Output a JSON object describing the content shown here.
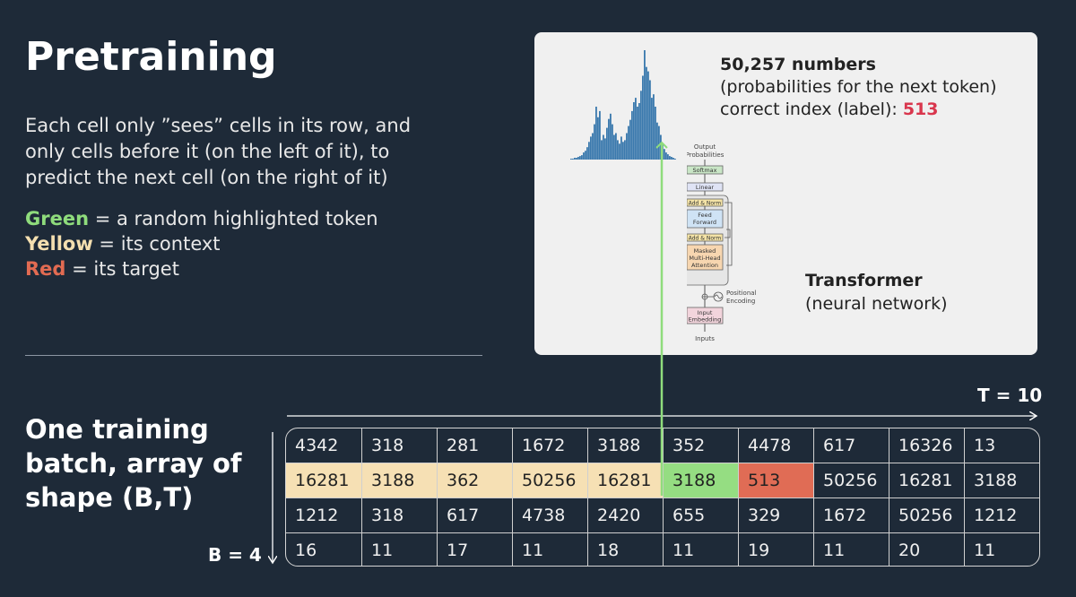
{
  "title": "Pretraining",
  "description": "Each cell only ”sees” cells in its row, and only cells before it (on the left of it), to predict the next cell (on the right of it)",
  "legend": [
    {
      "key": "Green",
      "text": " = a random highlighted token",
      "color": "#8fdc7c"
    },
    {
      "key": "Yellow",
      "text": " = its context",
      "color": "#f4dfb0"
    },
    {
      "key": "Red",
      "text": " = its target",
      "color": "#e26b52"
    }
  ],
  "output_panel": {
    "count": "50,257 numbers",
    "subtitle": "(probabilities for the next token)",
    "label_prefix": "correct index (label): ",
    "label_value": "513",
    "model_name": "Transformer",
    "model_desc": "(neural network)"
  },
  "histogram": {
    "values": [
      1,
      1,
      2,
      2,
      3,
      4,
      5,
      8,
      10,
      14,
      20,
      26,
      30,
      40,
      60,
      48,
      55,
      22,
      28,
      24,
      36,
      46,
      52,
      40,
      28,
      30,
      22,
      18,
      26,
      20,
      22,
      30,
      38,
      45,
      55,
      65,
      70,
      60,
      64,
      78,
      95,
      124,
      105,
      100,
      90,
      70,
      74,
      60,
      42,
      38,
      28,
      18,
      12,
      8,
      6,
      4,
      3,
      2,
      1
    ],
    "color": "#3a79ad"
  },
  "architecture": {
    "output_probs": [
      "Output",
      "Probabilities"
    ],
    "softmax": "Softmax",
    "linear": "Linear",
    "add_norm": "Add & Norm",
    "feed_forward": [
      "Feed",
      "Forward"
    ],
    "masked_attention": [
      "Masked",
      "Multi-Head",
      "Attention"
    ],
    "positional_encoding": [
      "Positional",
      "Encoding"
    ],
    "input_embedding": [
      "Input",
      "Embedding"
    ],
    "inputs": "Inputs"
  },
  "batch": {
    "label": "One training batch, array of shape (B,T)",
    "b_label": "B = 4",
    "t_label": "T = 10",
    "rows": [
      [
        4342,
        318,
        281,
        1672,
        3188,
        352,
        4478,
        617,
        16326,
        13
      ],
      [
        16281,
        3188,
        362,
        50256,
        16281,
        3188,
        513,
        50256,
        16281,
        3188
      ],
      [
        1212,
        318,
        617,
        4738,
        2420,
        655,
        329,
        1672,
        50256,
        1212
      ],
      [
        16,
        11,
        17,
        11,
        18,
        11,
        19,
        11,
        20,
        11
      ]
    ],
    "highlight": {
      "row": 1,
      "context_cols": [
        0,
        1,
        2,
        3,
        4
      ],
      "token_col": 5,
      "target_col": 6
    },
    "colors": {
      "context": "#f6e0b4",
      "token": "#95dd82",
      "target": "#e06c55",
      "arrow": "#8fdc7c"
    }
  }
}
